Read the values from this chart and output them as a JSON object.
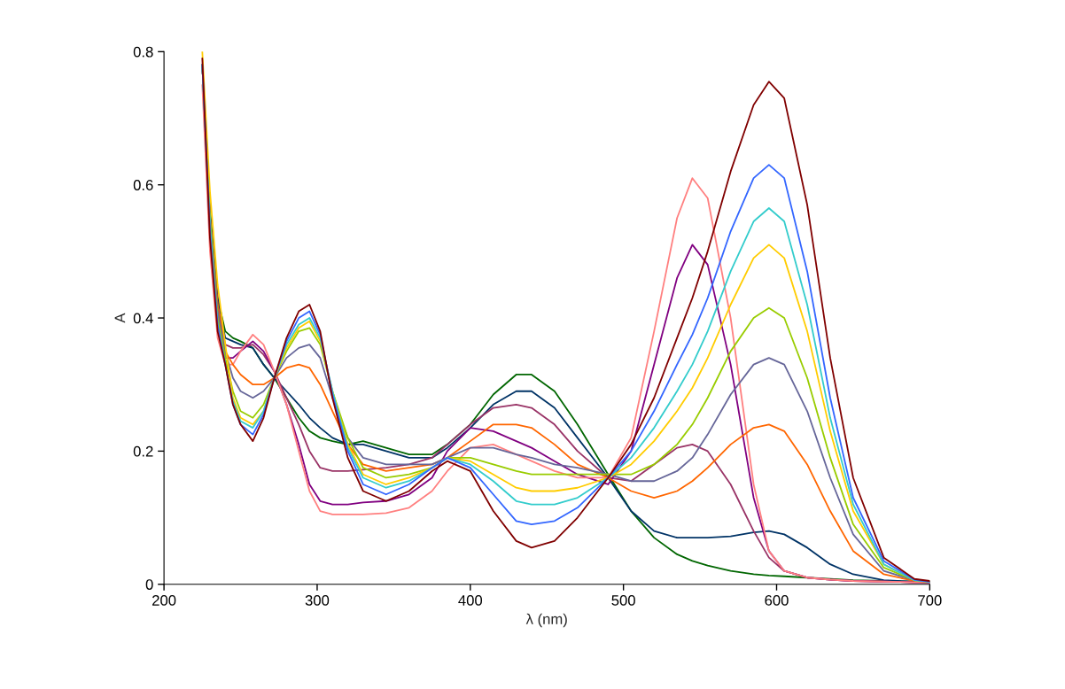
{
  "chart_data": {
    "type": "line",
    "xlabel": "λ (nm)",
    "ylabel": "A",
    "x": [
      225,
      230,
      235,
      240,
      245,
      250,
      258,
      265,
      272,
      280,
      288,
      295,
      302,
      310,
      320,
      330,
      345,
      360,
      375,
      385,
      400,
      415,
      430,
      440,
      455,
      470,
      490,
      505,
      520,
      535,
      545,
      555,
      570,
      585,
      595,
      605,
      620,
      635,
      650,
      670,
      690,
      700
    ],
    "xlim": [
      200,
      700
    ],
    "xticks": [
      200,
      300,
      400,
      500,
      600,
      700
    ],
    "ylim": [
      0,
      0.8
    ],
    "yticks": [
      0,
      0.2,
      0.4,
      0.6,
      0.8
    ],
    "grid": false,
    "marker": "none",
    "line_style": "solid",
    "series": [
      {
        "color": "#006600",
        "values": [
          0.78,
          0.56,
          0.43,
          0.38,
          0.37,
          0.365,
          0.355,
          0.33,
          0.31,
          0.28,
          0.25,
          0.23,
          0.22,
          0.215,
          0.21,
          0.215,
          0.205,
          0.195,
          0.195,
          0.21,
          0.24,
          0.285,
          0.315,
          0.315,
          0.29,
          0.24,
          0.165,
          0.11,
          0.07,
          0.045,
          0.035,
          0.028,
          0.02,
          0.015,
          0.013,
          0.012,
          0.01,
          0.008,
          0.006,
          0.005,
          0.004,
          0.003
        ]
      },
      {
        "color": "#003366",
        "values": [
          0.78,
          0.56,
          0.43,
          0.37,
          0.365,
          0.36,
          0.355,
          0.33,
          0.31,
          0.29,
          0.27,
          0.25,
          0.235,
          0.22,
          0.21,
          0.21,
          0.2,
          0.19,
          0.19,
          0.205,
          0.235,
          0.27,
          0.29,
          0.29,
          0.265,
          0.22,
          0.16,
          0.11,
          0.08,
          0.07,
          0.07,
          0.07,
          0.072,
          0.078,
          0.08,
          0.075,
          0.055,
          0.03,
          0.015,
          0.006,
          0.004,
          0.003
        ]
      },
      {
        "color": "#993366",
        "values": [
          0.78,
          0.55,
          0.42,
          0.36,
          0.355,
          0.355,
          0.36,
          0.345,
          0.32,
          0.28,
          0.24,
          0.2,
          0.175,
          0.17,
          0.17,
          0.172,
          0.175,
          0.18,
          0.19,
          0.21,
          0.24,
          0.265,
          0.27,
          0.265,
          0.24,
          0.2,
          0.16,
          0.155,
          0.18,
          0.205,
          0.21,
          0.2,
          0.15,
          0.08,
          0.04,
          0.02,
          0.01,
          0.007,
          0.005,
          0.004,
          0.003,
          0.003
        ]
      },
      {
        "color": "#800080",
        "values": [
          0.78,
          0.55,
          0.4,
          0.34,
          0.34,
          0.35,
          0.365,
          0.35,
          0.32,
          0.27,
          0.21,
          0.15,
          0.125,
          0.12,
          0.12,
          0.123,
          0.125,
          0.135,
          0.16,
          0.2,
          0.235,
          0.23,
          0.215,
          0.205,
          0.185,
          0.165,
          0.15,
          0.2,
          0.33,
          0.46,
          0.51,
          0.48,
          0.33,
          0.13,
          0.05,
          0.02,
          0.01,
          0.007,
          0.005,
          0.004,
          0.003,
          0.003
        ]
      },
      {
        "color": "#ff8080",
        "values": [
          0.75,
          0.5,
          0.37,
          0.33,
          0.33,
          0.35,
          0.375,
          0.36,
          0.32,
          0.27,
          0.2,
          0.14,
          0.11,
          0.105,
          0.105,
          0.105,
          0.107,
          0.115,
          0.14,
          0.17,
          0.205,
          0.21,
          0.195,
          0.185,
          0.17,
          0.16,
          0.16,
          0.22,
          0.38,
          0.55,
          0.61,
          0.58,
          0.4,
          0.15,
          0.05,
          0.02,
          0.01,
          0.007,
          0.005,
          0.004,
          0.003,
          0.003
        ]
      },
      {
        "color": "#ff6600",
        "values": [
          0.78,
          0.55,
          0.42,
          0.35,
          0.33,
          0.315,
          0.3,
          0.3,
          0.31,
          0.325,
          0.33,
          0.325,
          0.3,
          0.26,
          0.21,
          0.18,
          0.17,
          0.175,
          0.18,
          0.19,
          0.215,
          0.24,
          0.24,
          0.235,
          0.21,
          0.18,
          0.16,
          0.14,
          0.13,
          0.14,
          0.155,
          0.175,
          0.21,
          0.235,
          0.24,
          0.23,
          0.18,
          0.11,
          0.05,
          0.015,
          0.005,
          0.004
        ]
      },
      {
        "color": "#666699",
        "values": [
          0.78,
          0.55,
          0.41,
          0.35,
          0.31,
          0.29,
          0.28,
          0.29,
          0.31,
          0.34,
          0.355,
          0.36,
          0.34,
          0.28,
          0.22,
          0.19,
          0.18,
          0.18,
          0.18,
          0.19,
          0.205,
          0.205,
          0.195,
          0.19,
          0.18,
          0.175,
          0.165,
          0.155,
          0.155,
          0.17,
          0.19,
          0.225,
          0.285,
          0.33,
          0.34,
          0.33,
          0.26,
          0.16,
          0.075,
          0.02,
          0.006,
          0.004
        ]
      },
      {
        "color": "#99cc00",
        "values": [
          0.78,
          0.55,
          0.4,
          0.34,
          0.29,
          0.26,
          0.25,
          0.27,
          0.31,
          0.35,
          0.38,
          0.385,
          0.36,
          0.29,
          0.22,
          0.175,
          0.16,
          0.165,
          0.175,
          0.19,
          0.19,
          0.18,
          0.17,
          0.165,
          0.165,
          0.165,
          0.165,
          0.165,
          0.18,
          0.21,
          0.24,
          0.28,
          0.35,
          0.4,
          0.415,
          0.4,
          0.31,
          0.19,
          0.09,
          0.025,
          0.006,
          0.004
        ]
      },
      {
        "color": "#ffcc00",
        "values": [
          0.8,
          0.59,
          0.45,
          0.36,
          0.28,
          0.25,
          0.24,
          0.26,
          0.31,
          0.355,
          0.385,
          0.395,
          0.365,
          0.29,
          0.21,
          0.165,
          0.15,
          0.16,
          0.175,
          0.19,
          0.185,
          0.165,
          0.145,
          0.14,
          0.14,
          0.145,
          0.16,
          0.18,
          0.215,
          0.26,
          0.295,
          0.34,
          0.42,
          0.49,
          0.51,
          0.49,
          0.38,
          0.23,
          0.11,
          0.03,
          0.006,
          0.004
        ]
      },
      {
        "color": "#33cccc",
        "values": [
          0.78,
          0.54,
          0.39,
          0.33,
          0.275,
          0.245,
          0.235,
          0.26,
          0.31,
          0.36,
          0.39,
          0.4,
          0.37,
          0.29,
          0.205,
          0.16,
          0.145,
          0.155,
          0.175,
          0.19,
          0.18,
          0.155,
          0.125,
          0.12,
          0.12,
          0.13,
          0.16,
          0.19,
          0.235,
          0.29,
          0.33,
          0.38,
          0.47,
          0.545,
          0.565,
          0.545,
          0.42,
          0.25,
          0.12,
          0.03,
          0.006,
          0.004
        ]
      },
      {
        "color": "#3366ff",
        "values": [
          0.78,
          0.53,
          0.39,
          0.33,
          0.27,
          0.24,
          0.225,
          0.255,
          0.31,
          0.365,
          0.4,
          0.41,
          0.375,
          0.285,
          0.2,
          0.15,
          0.135,
          0.15,
          0.175,
          0.19,
          0.175,
          0.135,
          0.095,
          0.09,
          0.095,
          0.115,
          0.16,
          0.2,
          0.26,
          0.33,
          0.375,
          0.43,
          0.53,
          0.61,
          0.63,
          0.61,
          0.47,
          0.28,
          0.13,
          0.035,
          0.007,
          0.004
        ]
      },
      {
        "color": "#800000",
        "values": [
          0.79,
          0.52,
          0.38,
          0.33,
          0.27,
          0.24,
          0.215,
          0.25,
          0.31,
          0.37,
          0.41,
          0.42,
          0.38,
          0.28,
          0.19,
          0.14,
          0.125,
          0.14,
          0.17,
          0.185,
          0.17,
          0.11,
          0.065,
          0.055,
          0.065,
          0.1,
          0.16,
          0.21,
          0.28,
          0.37,
          0.43,
          0.5,
          0.62,
          0.72,
          0.755,
          0.73,
          0.57,
          0.34,
          0.16,
          0.04,
          0.008,
          0.005
        ]
      }
    ]
  }
}
